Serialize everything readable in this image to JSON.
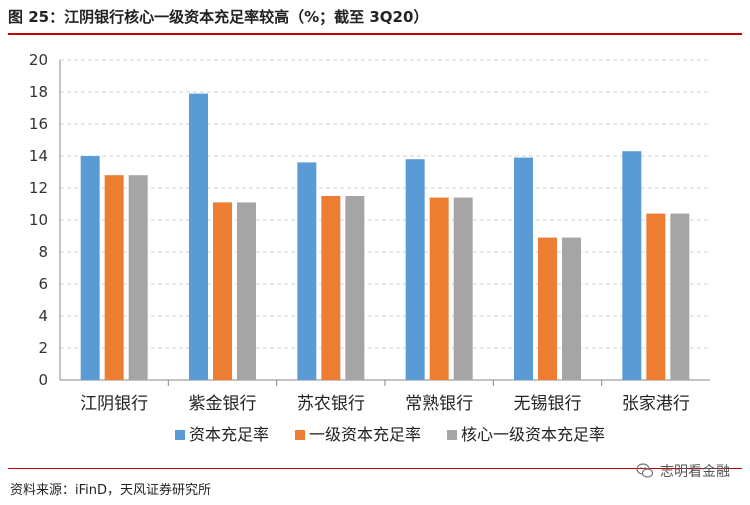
{
  "header": {
    "title": "图 25：江阴银行核心一级资本充足率较高（%；截至 3Q20）"
  },
  "footer": {
    "source": "资料来源：iFinD，天风证券研究所",
    "watermark": "志明看金融",
    "watermark_icon": "wechat-chat-icon"
  },
  "colors": {
    "series": [
      "#5b9bd5",
      "#ed7d31",
      "#a5a5a5"
    ],
    "title_rule": "#c00000"
  },
  "chart_data": {
    "type": "bar",
    "categories": [
      "江阴银行",
      "紫金银行",
      "苏农银行",
      "常熟银行",
      "无锡银行",
      "张家港行"
    ],
    "series": [
      {
        "name": "资本充足率",
        "values": [
          14.0,
          17.9,
          13.6,
          13.8,
          13.9,
          14.3
        ]
      },
      {
        "name": "一级资本充足率",
        "values": [
          12.8,
          11.1,
          11.5,
          11.4,
          8.9,
          10.4
        ]
      },
      {
        "name": "核心一级资本充足率",
        "values": [
          12.8,
          11.1,
          11.5,
          11.4,
          8.9,
          10.4
        ]
      }
    ],
    "ylim": [
      0,
      20
    ],
    "yticks": [
      0,
      2,
      4,
      6,
      8,
      10,
      12,
      14,
      16,
      18,
      20
    ],
    "grid": true,
    "legend_position": "bottom"
  }
}
